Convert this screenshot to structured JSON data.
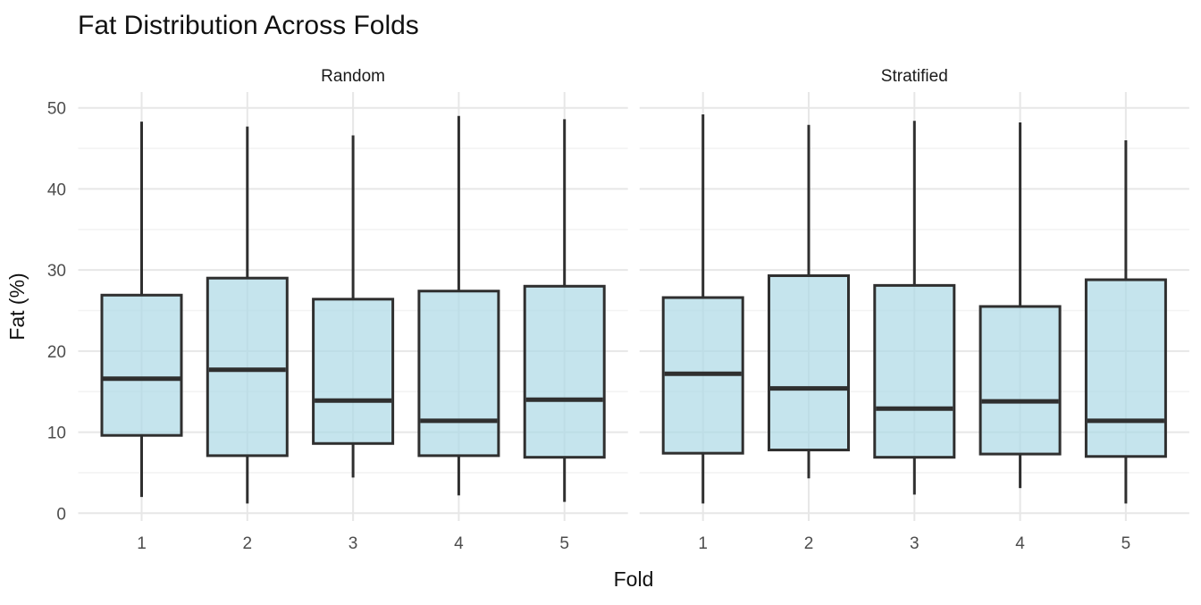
{
  "title": "Fat Distribution Across Folds",
  "axes": {
    "x_title": "Fold",
    "y_title": "Fat (%)",
    "y_tick_labels": [
      "0",
      "10",
      "20",
      "30",
      "40",
      "50"
    ],
    "x_tick_labels": [
      "1",
      "2",
      "3",
      "4",
      "5"
    ]
  },
  "colors": {
    "background": "#ffffff",
    "box_fill": "#add8e6",
    "box_fill_opacity": 0.7,
    "box_stroke": "#2f2f2f",
    "grid_major": "#e7e7e7",
    "grid_minor": "#f3f3f3",
    "tick_label_color": "#4d4d4d",
    "title_color": "#111111"
  },
  "chart_data": {
    "type": "boxplot",
    "title": "Fat Distribution Across Folds",
    "xlabel": "Fold",
    "ylabel": "Fat (%)",
    "ylim": [
      0,
      50
    ],
    "y_major_ticks": [
      0,
      10,
      20,
      30,
      40,
      50
    ],
    "y_minor_ticks": [
      5,
      15,
      25,
      35,
      45
    ],
    "grid": true,
    "legend": false,
    "facets": [
      {
        "label": "Random",
        "categories": [
          "1",
          "2",
          "3",
          "4",
          "5"
        ],
        "boxes": [
          {
            "fold": "1",
            "whisker_low": 2.0,
            "q1": 9.6,
            "median": 16.6,
            "q3": 26.9,
            "whisker_high": 48.3
          },
          {
            "fold": "2",
            "whisker_low": 1.2,
            "q1": 7.1,
            "median": 17.7,
            "q3": 29.0,
            "whisker_high": 47.7
          },
          {
            "fold": "3",
            "whisker_low": 4.4,
            "q1": 8.6,
            "median": 13.9,
            "q3": 26.4,
            "whisker_high": 46.6
          },
          {
            "fold": "4",
            "whisker_low": 2.2,
            "q1": 7.1,
            "median": 11.4,
            "q3": 27.4,
            "whisker_high": 49.0
          },
          {
            "fold": "5",
            "whisker_low": 1.4,
            "q1": 6.9,
            "median": 14.0,
            "q3": 28.0,
            "whisker_high": 48.6
          }
        ]
      },
      {
        "label": "Stratified",
        "categories": [
          "1",
          "2",
          "3",
          "4",
          "5"
        ],
        "boxes": [
          {
            "fold": "1",
            "whisker_low": 1.2,
            "q1": 7.4,
            "median": 17.2,
            "q3": 26.6,
            "whisker_high": 49.2
          },
          {
            "fold": "2",
            "whisker_low": 4.3,
            "q1": 7.8,
            "median": 15.4,
            "q3": 29.3,
            "whisker_high": 47.9
          },
          {
            "fold": "3",
            "whisker_low": 2.3,
            "q1": 6.9,
            "median": 12.9,
            "q3": 28.1,
            "whisker_high": 48.4
          },
          {
            "fold": "4",
            "whisker_low": 3.1,
            "q1": 7.3,
            "median": 13.8,
            "q3": 25.5,
            "whisker_high": 48.2
          },
          {
            "fold": "5",
            "whisker_low": 1.2,
            "q1": 7.0,
            "median": 11.4,
            "q3": 28.8,
            "whisker_high": 46.0
          }
        ]
      }
    ]
  }
}
